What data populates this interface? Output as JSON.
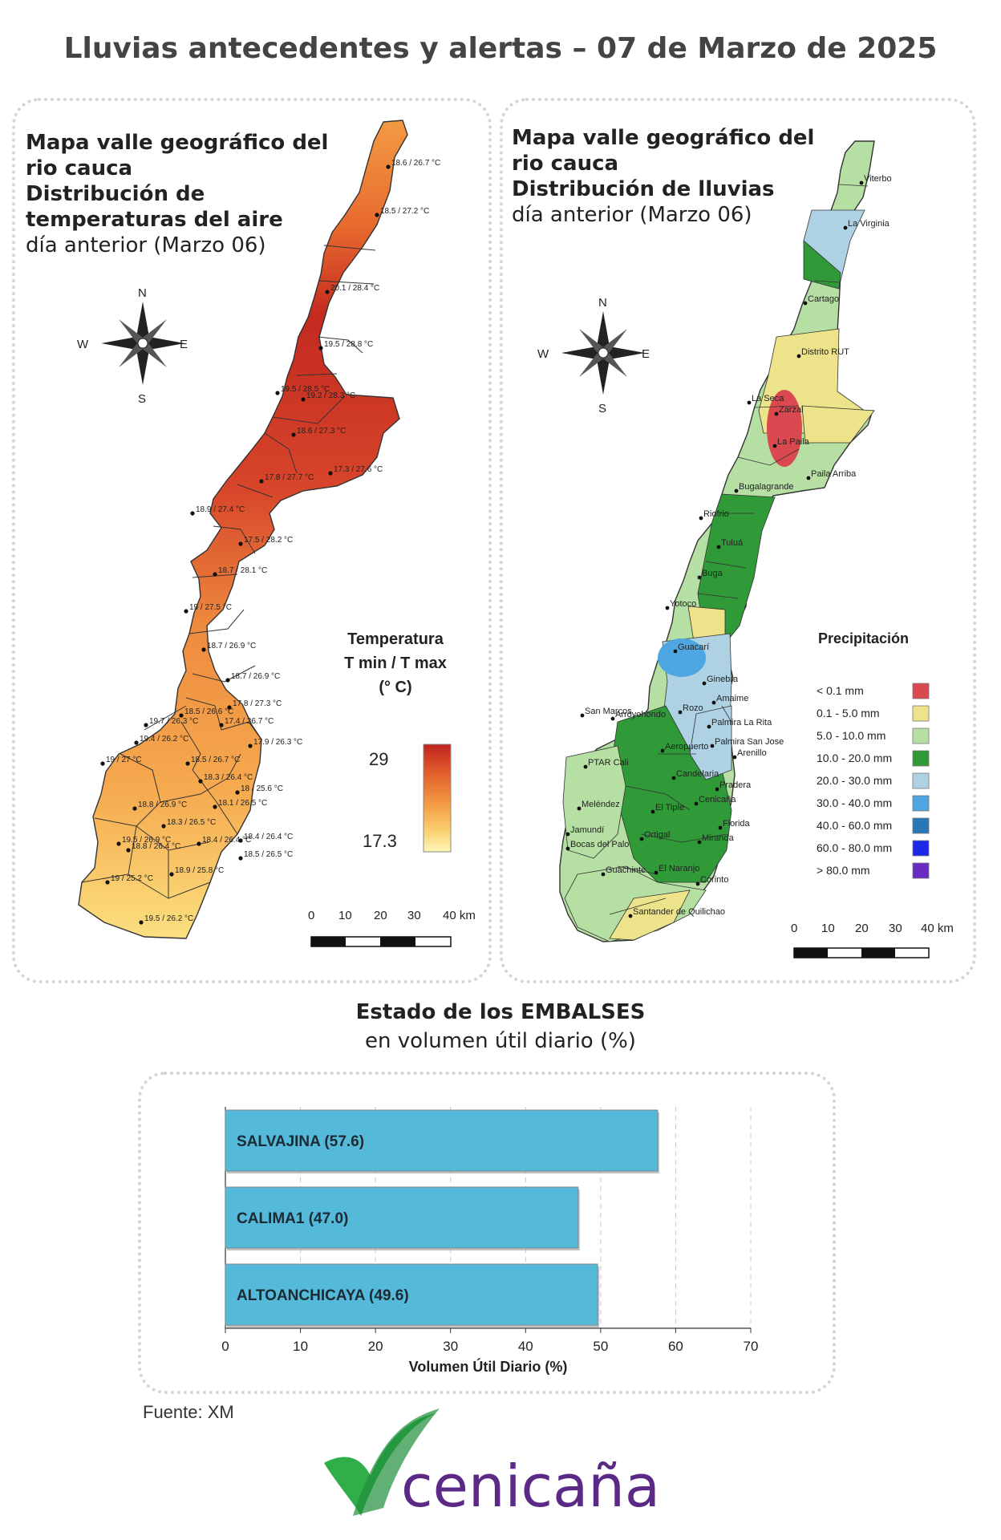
{
  "header": {
    "title": "Lluvias antecedentes y alertas – 07 de Marzo de 2025"
  },
  "temp_map": {
    "heading_line1": "Mapa valle geográfico del",
    "heading_line2": "rio cauca",
    "heading_line3": "Distribución de",
    "heading_line4": "temperaturas del aire",
    "heading_line5": "día anterior (Marzo 06)",
    "compass": {
      "n": "N",
      "s": "S",
      "e": "E",
      "w": "W"
    },
    "legend": {
      "title_line1": "Temperatura",
      "title_line2": "T min / T max",
      "title_line3": "(° C)",
      "max": "29",
      "min": "17.3",
      "colors": [
        "#c0231f",
        "#e05a2a",
        "#f39a43",
        "#f9cf6e",
        "#fff6b8"
      ]
    },
    "scale": [
      "0",
      "10",
      "20",
      "30",
      "40 km"
    ],
    "stations": [
      "18.6 / 26.7 °C",
      "18.5 / 27.2 °C",
      "20.1 / 28.4 °C",
      "19.5 / 28.8 °C",
      "19.5 / 28.5 °C",
      "19.2 / 28.3 °C",
      "18.6 / 27.3 °C",
      "17.3 / 27.6 °C",
      "17.8 / 27.7 °C",
      "18.9 / 27.4 °C",
      "17.5 / 28.2 °C",
      "18.7 / 28.1 °C",
      "19 / 27.5 °C",
      "18.7 / 26.9 °C",
      "18.7 / 26.9 °C",
      "18.5 / 26.6 °C",
      "17.8 / 27.3 °C",
      "19.7 / 26.3 °C",
      "17.4 / 26.7 °C",
      "19.4 / 26.2 °C",
      "17.9 / 26.3 °C",
      "19 / 27 °C",
      "18.5 / 26.7 °C",
      "18.3 / 26.4 °C",
      "18 / 25.6 °C",
      "18.8 / 26.9 °C",
      "18.1 / 26.5 °C",
      "18.3 / 26.5 °C",
      "18.4 / 26.4 °C",
      "19.5 / 26.9 °C",
      "18.8 / 26.4 °C",
      "18.4 / 26.4 °C",
      "18.5 / 26.5 °C",
      "18.9 / 25.8 °C",
      "19 / 25.2 °C",
      "19.5 / 26.2 °C"
    ]
  },
  "rain_map": {
    "heading_line1": "Mapa valle geográfico del",
    "heading_line2": "rio cauca",
    "heading_line3": "Distribución de lluvias",
    "heading_line4": "día anterior (Marzo 06)",
    "compass": {
      "n": "N",
      "s": "S",
      "e": "E",
      "w": "W"
    },
    "legend": {
      "title": "Precipitación",
      "items": [
        {
          "label": "< 0.1 mm",
          "color": "#d9494f"
        },
        {
          "label": "0.1 - 5.0 mm",
          "color": "#ede38a"
        },
        {
          "label": "5.0 - 10.0 mm",
          "color": "#b6dfa3"
        },
        {
          "label": "10.0 - 20.0 mm",
          "color": "#2f9a37"
        },
        {
          "label": "20.0 - 30.0 mm",
          "color": "#aed2e4"
        },
        {
          "label": "30.0 - 40.0 mm",
          "color": "#4ea6e3"
        },
        {
          "label": "40.0 - 60.0 mm",
          "color": "#2876b6"
        },
        {
          "label": "60.0 - 80.0 mm",
          "color": "#1c27e8"
        },
        {
          "label": "> 80.0 mm",
          "color": "#6a2bc2"
        }
      ]
    },
    "scale": [
      "0",
      "10",
      "20",
      "30",
      "40 km"
    ],
    "stations": [
      "Viterbo",
      "La Virginia",
      "Cartago",
      "Distrito RUT",
      "La Seca",
      "Zarzal",
      "La Paila",
      "Paila Arriba",
      "Bugalagrande",
      "Riofrio",
      "Tuluá",
      "Buga",
      "Yotoco",
      "Guacarí",
      "Ginebra",
      "Amaime",
      "San Marcos",
      "Rozo",
      "Palmira La Rita",
      "Arroyohondo",
      "Palmira San Jose",
      "Aeropuerto",
      "Arenillo",
      "PTAR Cali",
      "Candelaria",
      "Pradera",
      "Meléndez",
      "Cenicaña",
      "El Tiple",
      "Florida",
      "Jamundí",
      "Bocas del Palo",
      "Ortigal",
      "Miranda",
      "Guachinte",
      "El Naranjo",
      "Corinto",
      "Santander de Quilichao"
    ]
  },
  "reservoirs": {
    "title_bold": "Estado de los EMBALSES",
    "title_normal": "en volumen útil diario (%)",
    "xlabel": "Volumen Útil Diario (%)"
  },
  "chart_data": {
    "type": "bar",
    "orientation": "horizontal",
    "categories": [
      "SALVAJINA (57.6)",
      "CALIMA1 (47.0)",
      "ALTOANCHICAYA (49.6)"
    ],
    "values": [
      57.6,
      47.0,
      49.6
    ],
    "xlabel": "Volumen Útil Diario (%)",
    "xlim": [
      0,
      70
    ],
    "xticks": [
      "0",
      "10",
      "20",
      "30",
      "40",
      "50",
      "60",
      "70"
    ],
    "grid": true,
    "color": "#55b9d9"
  },
  "footer": {
    "source": "Fuente: XM",
    "brand": "cenicaña",
    "brand_color": "#5b2a86",
    "leaf_color": "#2fae4a"
  }
}
